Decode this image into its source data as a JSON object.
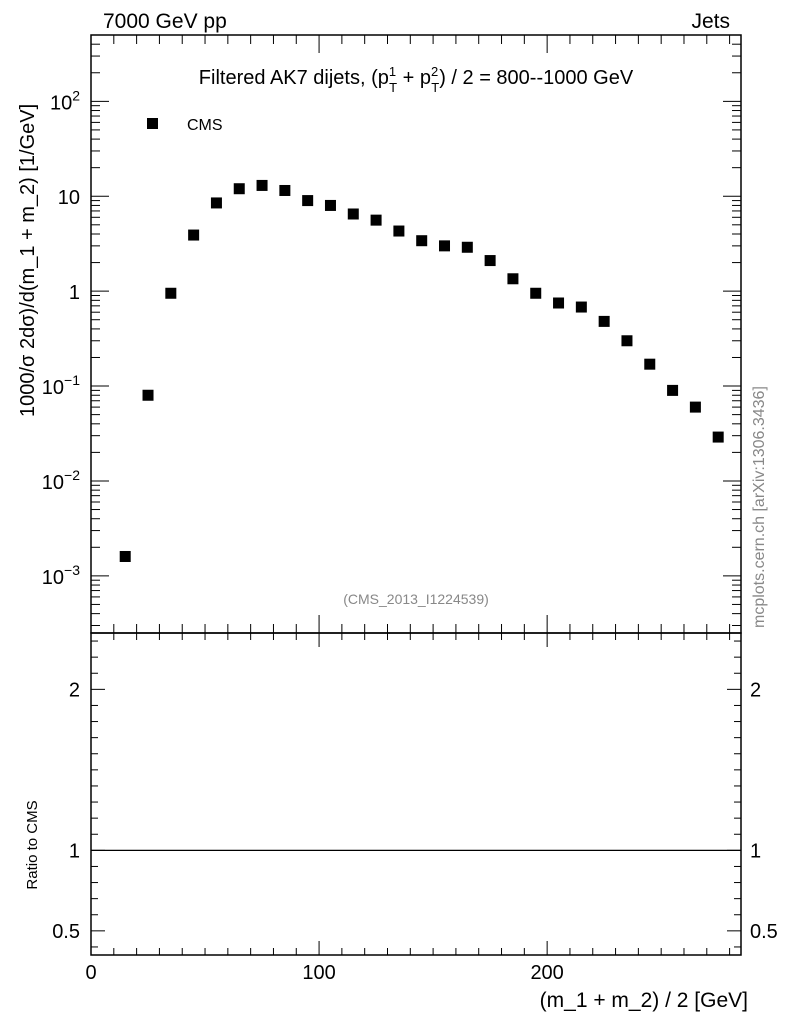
{
  "header": {
    "left": "7000 GeV pp",
    "right": "Jets"
  },
  "side_label": "mcplots.cern.ch [arXiv:1306.3436]",
  "colors": {
    "marker": "#000000",
    "frame": "#000000",
    "watermark": "#888888"
  },
  "chart_data": [
    {
      "type": "scatter",
      "title_parts": {
        "before": "Filtered AK7 dijets, (p",
        "sup1": "1",
        "sub1": "T",
        "mid": " + p",
        "sup2": "2",
        "sub2": "T",
        "after": ") / 2 = 800--1000 GeV"
      },
      "ylabel": "1000/σ   2dσ)/d(m_1 + m_2) [1/GeV]",
      "yscale": "log",
      "ylim": [
        0.00025,
        500
      ],
      "xlim": [
        0,
        285
      ],
      "yticks": [
        {
          "value": 0.001,
          "base": "10",
          "exp": "−3"
        },
        {
          "value": 0.01,
          "base": "10",
          "exp": "−2"
        },
        {
          "value": 0.1,
          "base": "10",
          "exp": "−1"
        },
        {
          "value": 1,
          "base": "1",
          "exp": ""
        },
        {
          "value": 10,
          "base": "10",
          "exp": ""
        },
        {
          "value": 100,
          "base": "10",
          "exp": "2"
        }
      ],
      "legend": {
        "label": "CMS",
        "position": "top-left"
      },
      "annotation": "(CMS_2013_I1224539)",
      "series": [
        {
          "name": "CMS",
          "marker": "square",
          "x": [
            15,
            25,
            35,
            45,
            55,
            65,
            75,
            85,
            95,
            105,
            115,
            125,
            135,
            145,
            155,
            165,
            175,
            185,
            195,
            205,
            215,
            225,
            235,
            245,
            255,
            265,
            275
          ],
          "y": [
            0.0016,
            0.08,
            0.95,
            3.9,
            8.5,
            12,
            13,
            11.5,
            9,
            8,
            6.5,
            5.6,
            4.3,
            3.4,
            3.0,
            2.9,
            2.1,
            1.35,
            0.95,
            0.75,
            0.68,
            0.48,
            0.3,
            0.17,
            0.09,
            0.06,
            0.029
          ]
        }
      ]
    },
    {
      "type": "line",
      "ylabel": "Ratio to CMS",
      "ylim": [
        0.35,
        2.35
      ],
      "xlim": [
        0,
        285
      ],
      "xlabel": "(m_1 + m_2) / 2 [GeV]",
      "yticks": [
        {
          "value": 0.5,
          "label": "0.5"
        },
        {
          "value": 1,
          "label": "1"
        },
        {
          "value": 2,
          "label": "2"
        }
      ],
      "xticks": [
        {
          "value": 0,
          "label": "0"
        },
        {
          "value": 100,
          "label": "100"
        },
        {
          "value": 200,
          "label": "200"
        }
      ],
      "reference_line": 1
    }
  ]
}
